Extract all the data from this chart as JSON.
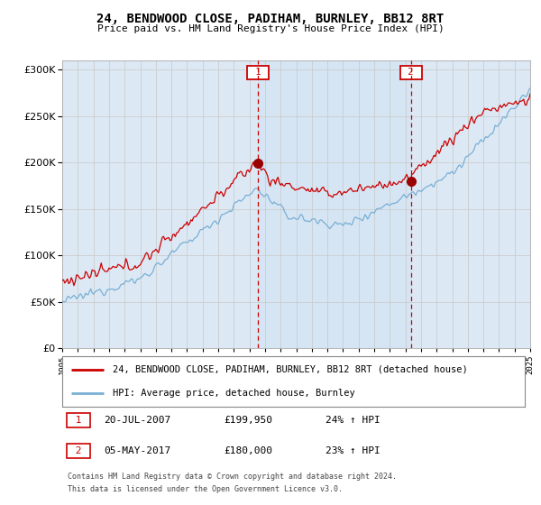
{
  "title": "24, BENDWOOD CLOSE, PADIHAM, BURNLEY, BB12 8RT",
  "subtitle": "Price paid vs. HM Land Registry's House Price Index (HPI)",
  "property_label": "24, BENDWOOD CLOSE, PADIHAM, BURNLEY, BB12 8RT (detached house)",
  "hpi_label": "HPI: Average price, detached house, Burnley",
  "sale1_date": "20-JUL-2007",
  "sale1_price": 199950,
  "sale1_hpi": "24% ↑ HPI",
  "sale2_date": "05-MAY-2017",
  "sale2_price": 180000,
  "sale2_hpi": "23% ↑ HPI",
  "sale1_year": 2007.55,
  "sale1_price_val": 199950,
  "sale2_year": 2017.35,
  "sale2_price_val": 180000,
  "footnote1": "Contains HM Land Registry data © Crown copyright and database right 2024.",
  "footnote2": "This data is licensed under the Open Government Licence v3.0.",
  "ylim": [
    0,
    310000
  ],
  "xlim_start": 1995,
  "xlim_end": 2025,
  "property_color": "#cc0000",
  "hpi_color": "#7aafd4",
  "fill_color": "#c8dff0",
  "background_color": "#dce9f5",
  "sale_marker_color": "#cc0000",
  "grid_color": "#cccccc",
  "dot_color": "#990000"
}
